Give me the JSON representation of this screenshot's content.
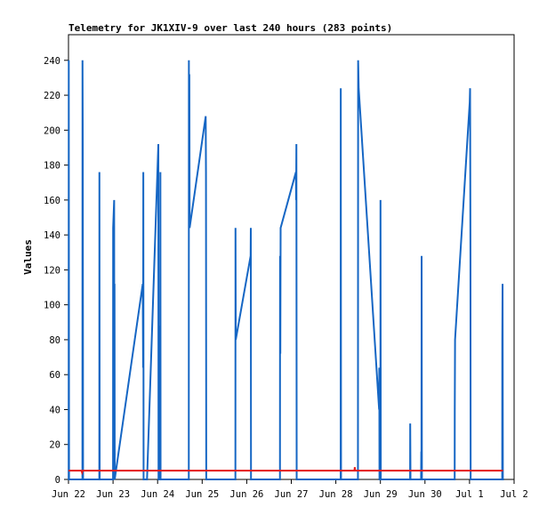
{
  "chart_data": {
    "type": "line",
    "title": "Telemetry for JK1XIV-9 over last 240 hours (283 points)",
    "ylabel": "Values",
    "xlabel": "",
    "ylim": [
      0,
      255
    ],
    "y_ticks": [
      0,
      20,
      40,
      60,
      80,
      100,
      120,
      140,
      160,
      180,
      200,
      220,
      240
    ],
    "x_ticks": [
      "Jun 22",
      "Jun 23",
      "Jun 24",
      "Jun 25",
      "Jun 26",
      "Jun 27",
      "Jun 28",
      "Jun 29",
      "Jun 30",
      "Jul 1",
      "Jul 2"
    ],
    "xlim_hours": [
      0,
      240
    ],
    "grid": false,
    "colors": {
      "series_blue": "#1566c4",
      "series_red": "#e41b1b",
      "axis": "#000000"
    },
    "series": [
      {
        "color": "#1566c4",
        "points": [
          [
            0.1,
            0
          ],
          [
            0.15,
            240
          ],
          [
            0.3,
            0
          ],
          [
            0.5,
            0
          ],
          [
            7.5,
            0
          ],
          [
            7.55,
            240
          ],
          [
            7.7,
            192
          ],
          [
            7.85,
            0
          ],
          [
            8.2,
            0
          ],
          [
            16.6,
            0
          ],
          [
            16.65,
            176
          ],
          [
            16.8,
            0
          ],
          [
            17.2,
            0
          ],
          [
            24.0,
            0
          ],
          [
            24.05,
            144
          ],
          [
            24.6,
            160
          ],
          [
            24.7,
            0
          ],
          [
            24.8,
            112
          ],
          [
            24.9,
            0
          ],
          [
            40.0,
            112
          ],
          [
            40.2,
            64
          ],
          [
            40.3,
            176
          ],
          [
            40.45,
            0
          ],
          [
            42.3,
            0
          ],
          [
            48.4,
            192
          ],
          [
            48.5,
            0
          ],
          [
            48.9,
            0
          ],
          [
            49.0,
            88
          ],
          [
            49.1,
            0
          ],
          [
            49.4,
            0
          ],
          [
            49.5,
            176
          ],
          [
            49.6,
            0
          ],
          [
            50.5,
            0
          ],
          [
            64.8,
            0
          ],
          [
            64.85,
            240
          ],
          [
            64.95,
            144
          ],
          [
            65.1,
            232
          ],
          [
            65.25,
            144
          ],
          [
            73.9,
            208
          ],
          [
            74.05,
            176
          ],
          [
            74.2,
            0
          ],
          [
            74.6,
            0
          ],
          [
            89.9,
            0
          ],
          [
            89.95,
            144
          ],
          [
            90.1,
            80
          ],
          [
            98.1,
            128
          ],
          [
            98.2,
            144
          ],
          [
            98.3,
            0
          ],
          [
            98.8,
            0
          ],
          [
            113.9,
            0
          ],
          [
            113.95,
            128
          ],
          [
            114.1,
            72
          ],
          [
            114.25,
            144
          ],
          [
            122.5,
            176
          ],
          [
            122.6,
            160
          ],
          [
            122.75,
            192
          ],
          [
            122.9,
            0
          ],
          [
            123.5,
            0
          ],
          [
            146.6,
            0
          ],
          [
            146.65,
            224
          ],
          [
            146.8,
            0
          ],
          [
            155.9,
            0
          ],
          [
            156.0,
            240
          ],
          [
            156.3,
            224
          ],
          [
            167.3,
            40
          ],
          [
            167.4,
            64
          ],
          [
            167.5,
            0
          ],
          [
            168.0,
            0
          ],
          [
            168.05,
            160
          ],
          [
            168.2,
            0
          ],
          [
            184.0,
            0
          ],
          [
            184.05,
            32
          ],
          [
            184.2,
            0
          ],
          [
            189.9,
            0
          ],
          [
            190.0,
            16
          ],
          [
            190.1,
            0
          ],
          [
            190.2,
            128
          ],
          [
            190.35,
            0
          ],
          [
            208.0,
            0
          ],
          [
            208.05,
            40
          ],
          [
            208.2,
            80
          ],
          [
            216.1,
            216
          ],
          [
            216.3,
            224
          ],
          [
            216.4,
            176
          ],
          [
            216.5,
            128
          ],
          [
            216.6,
            0
          ],
          [
            217.0,
            0
          ],
          [
            233.6,
            0
          ],
          [
            233.65,
            80
          ],
          [
            233.8,
            112
          ],
          [
            233.95,
            0
          ],
          [
            234.5,
            0
          ]
        ]
      },
      {
        "color": "#e41b1b",
        "points": [
          [
            0,
            5
          ],
          [
            7.0,
            5
          ],
          [
            7.3,
            4
          ],
          [
            7.6,
            5
          ],
          [
            154.0,
            5
          ],
          [
            154.2,
            7
          ],
          [
            154.4,
            5
          ],
          [
            234.0,
            5
          ]
        ]
      }
    ]
  }
}
